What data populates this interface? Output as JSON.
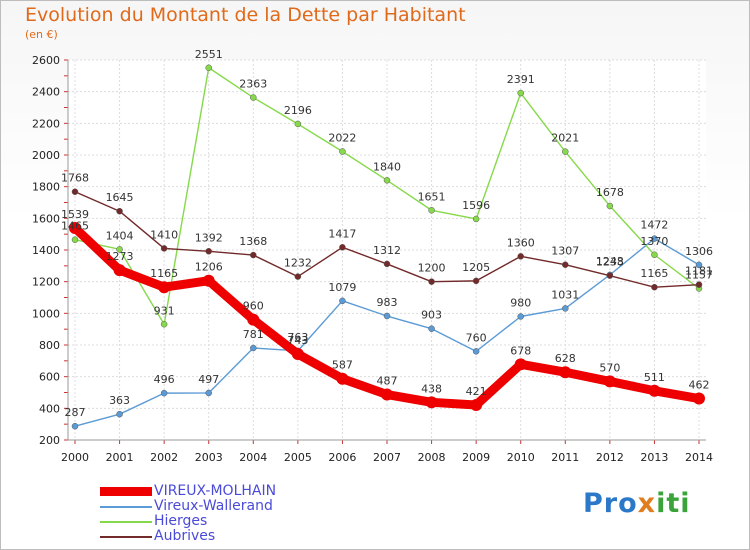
{
  "title": "Evolution du Montant de la Dette par Habitant",
  "subtitle": "(en €)",
  "logo_text": "Proxiti",
  "chart_data": {
    "type": "line",
    "title": "Evolution du Montant de la Dette par Habitant",
    "ylabel": "(en €)",
    "xlabel": "",
    "categories": [
      "2000",
      "2001",
      "2002",
      "2003",
      "2004",
      "2005",
      "2006",
      "2007",
      "2008",
      "2009",
      "2010",
      "2011",
      "2012",
      "2013",
      "2014"
    ],
    "ylim": [
      200,
      2600
    ],
    "yticks": [
      200,
      400,
      600,
      800,
      1000,
      1200,
      1400,
      1600,
      1800,
      2000,
      2200,
      2400,
      2600
    ],
    "grid": true,
    "legend_position": "bottom-left",
    "series": [
      {
        "name": "VIREUX-MOLHAIN",
        "color": "#ee0000",
        "emphasis": true,
        "values": [
          1539,
          1273,
          1165,
          1206,
          960,
          743,
          587,
          487,
          438,
          421,
          678,
          628,
          570,
          511,
          462
        ]
      },
      {
        "name": "Vireux-Wallerand",
        "color": "#5b9bd5",
        "emphasis": false,
        "values": [
          287,
          363,
          496,
          497,
          781,
          763,
          1079,
          983,
          903,
          760,
          980,
          1031,
          1243,
          1472,
          1306
        ]
      },
      {
        "name": "Hierges",
        "color": "#86d94a",
        "emphasis": false,
        "values": [
          1465,
          1404,
          931,
          2551,
          2363,
          2196,
          2022,
          1840,
          1651,
          1596,
          2391,
          2021,
          1678,
          1370,
          1157
        ]
      },
      {
        "name": "Aubrives",
        "color": "#722a2a",
        "emphasis": false,
        "values": [
          1768,
          1645,
          1410,
          1392,
          1368,
          1232,
          1417,
          1312,
          1200,
          1205,
          1360,
          1307,
          1238,
          1165,
          1181
        ]
      }
    ]
  }
}
